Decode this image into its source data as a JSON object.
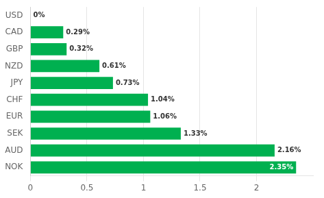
{
  "chart_data": {
    "type": "bar",
    "orientation": "horizontal",
    "categories": [
      "USD",
      "CAD",
      "GBP",
      "NZD",
      "JPY",
      "CHF",
      "EUR",
      "SEK",
      "AUD",
      "NOK"
    ],
    "values": [
      0.0,
      0.29,
      0.32,
      0.61,
      0.73,
      1.04,
      1.06,
      1.33,
      2.16,
      2.35
    ],
    "value_labels": [
      "0%",
      "0.29%",
      "0.32%",
      "0.61%",
      "0.73%",
      "1.04%",
      "1.06%",
      "1.33%",
      "2.16%",
      "2.35%"
    ],
    "data_labels": true,
    "color": "#00b050",
    "xlim": [
      0,
      2.5
    ],
    "xticks": [
      0,
      0.5,
      1,
      1.5,
      2
    ],
    "grid": true
  }
}
